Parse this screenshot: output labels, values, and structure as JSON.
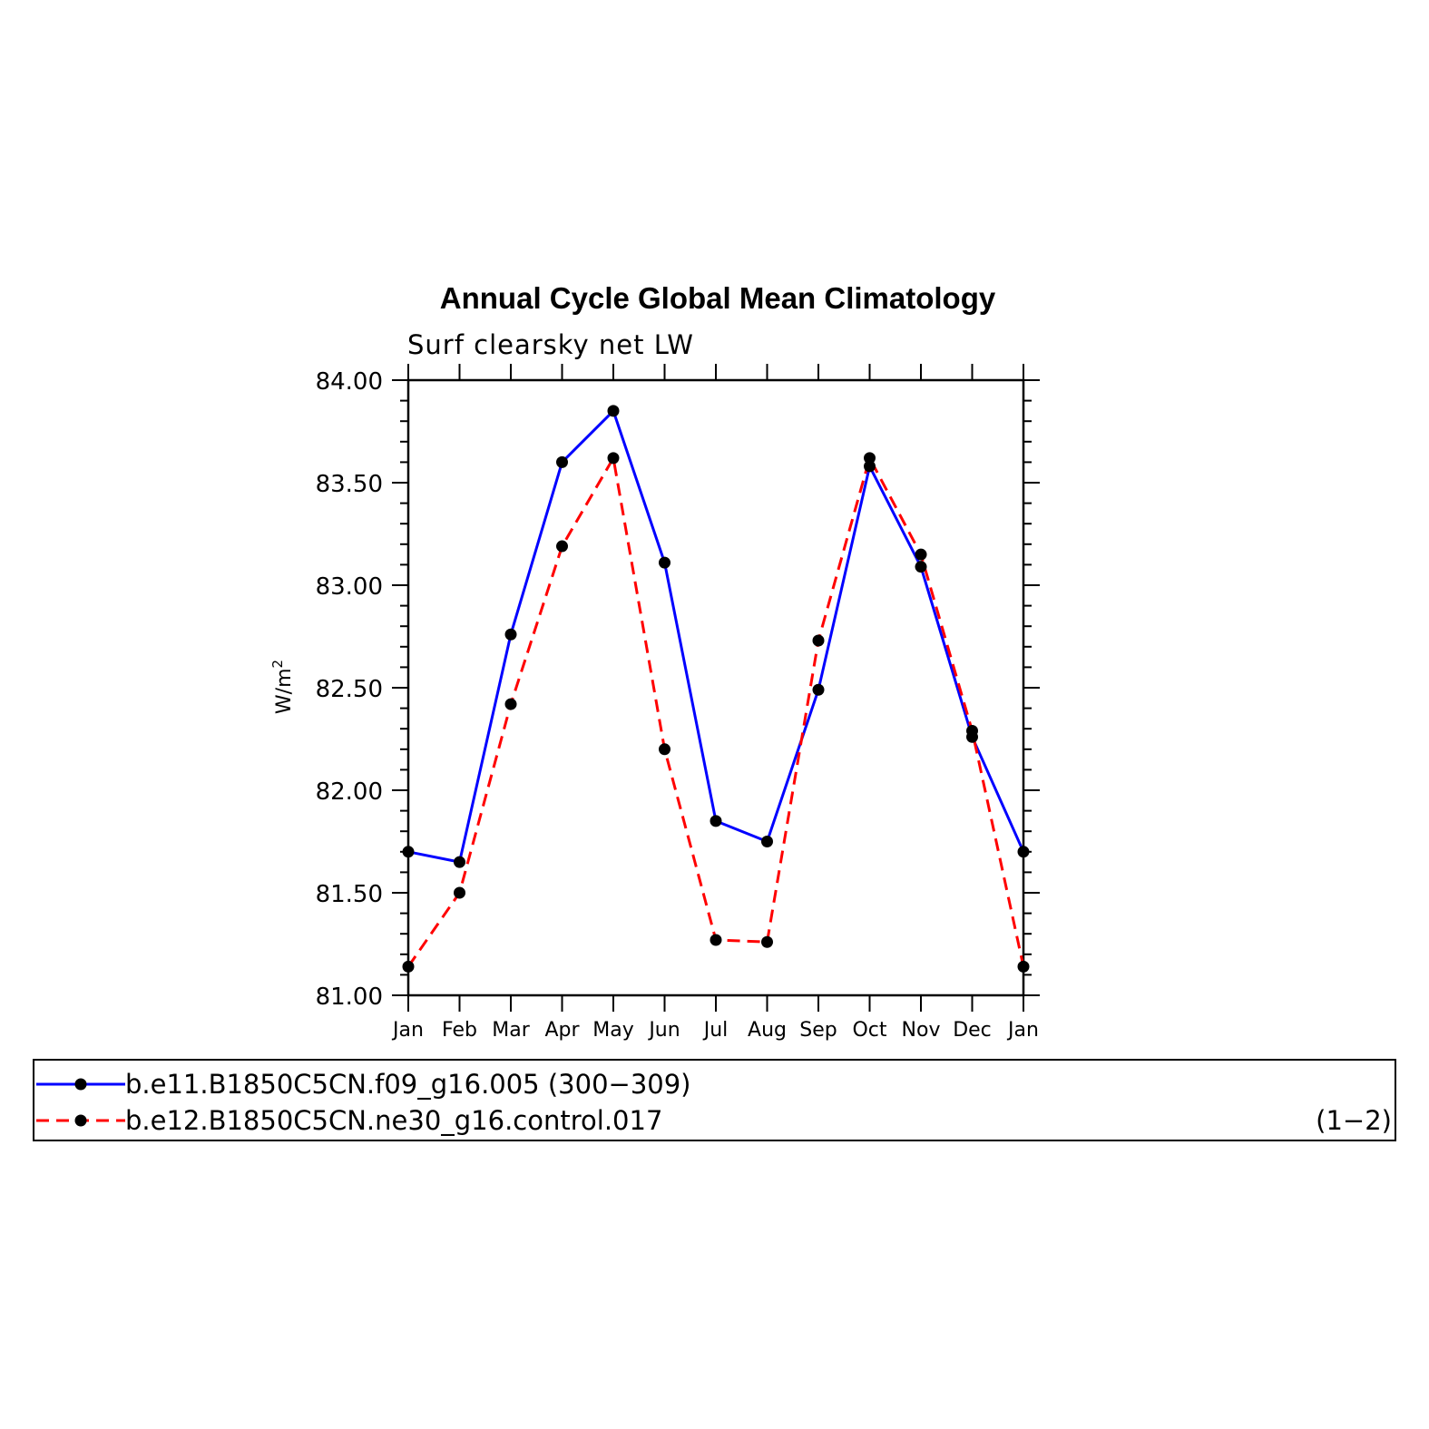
{
  "chart_data": {
    "type": "line",
    "title": "Annual Cycle Global Mean Climatology",
    "subtitle": "Surf clearsky net LW",
    "xlabel": "",
    "ylabel": "W/m",
    "ylabel_superscript": "2",
    "ylim": [
      81.0,
      84.0
    ],
    "yticks": [
      "81.00",
      "81.50",
      "82.00",
      "82.50",
      "83.00",
      "83.50",
      "84.00"
    ],
    "categories": [
      "Jan",
      "Feb",
      "Mar",
      "Apr",
      "May",
      "Jun",
      "Jul",
      "Aug",
      "Sep",
      "Oct",
      "Nov",
      "Dec",
      "Jan"
    ],
    "series": [
      {
        "name": "b.e11.B1850C5CN.f09_g16.005 (300−309)",
        "color": "#0000ff",
        "style": "solid",
        "values": [
          81.7,
          81.65,
          82.76,
          83.6,
          83.85,
          83.11,
          81.85,
          81.75,
          82.49,
          83.58,
          83.09,
          82.26,
          81.7
        ]
      },
      {
        "name": "b.e12.B1850C5CN.ne30_g16.control.017",
        "color": "#ff0000",
        "style": "dashed",
        "values": [
          81.14,
          81.5,
          82.42,
          83.19,
          83.62,
          82.2,
          81.27,
          81.26,
          82.73,
          83.62,
          83.15,
          82.29,
          81.14
        ]
      }
    ],
    "legend_placement": "bottom",
    "legend_note": "(1−2)",
    "grid": false
  }
}
